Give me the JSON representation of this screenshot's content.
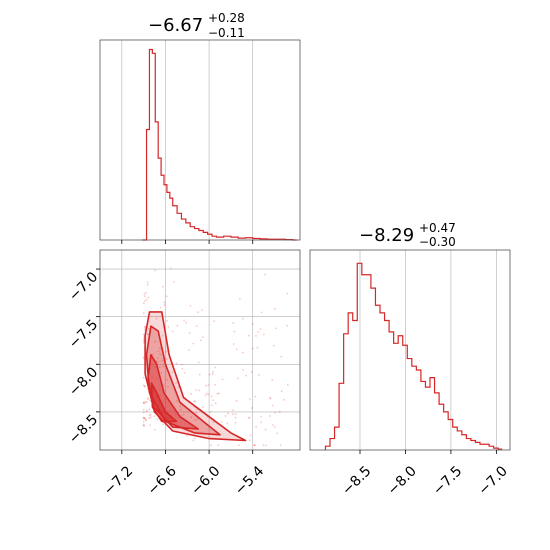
{
  "colors": {
    "line": "#d62728",
    "fill": "#f4a6a6",
    "grid": "#b0b0b0",
    "frame": "#555555"
  },
  "chart_data": [
    {
      "type": "histogram",
      "panel": "top-left",
      "title": {
        "main": "−6.67",
        "plus": "+0.28",
        "minus": "−0.11"
      },
      "xlim": [
        -7.5,
        -4.75
      ],
      "ylim": [
        0,
        1.05
      ],
      "xticks": [
        -7.2,
        -6.6,
        -6.0,
        -5.4
      ],
      "grid": true,
      "bins": [
        [
          -6.92,
          0
        ],
        [
          -6.86,
          0.58
        ],
        [
          -6.82,
          1.0
        ],
        [
          -6.78,
          0.98
        ],
        [
          -6.74,
          0.62
        ],
        [
          -6.7,
          0.43
        ],
        [
          -6.66,
          0.34
        ],
        [
          -6.62,
          0.29
        ],
        [
          -6.58,
          0.25
        ],
        [
          -6.54,
          0.22
        ],
        [
          -6.5,
          0.18
        ],
        [
          -6.44,
          0.14
        ],
        [
          -6.38,
          0.11
        ],
        [
          -6.32,
          0.09
        ],
        [
          -6.26,
          0.07
        ],
        [
          -6.2,
          0.06
        ],
        [
          -6.14,
          0.05
        ],
        [
          -6.08,
          0.04
        ],
        [
          -6.02,
          0.03
        ],
        [
          -5.96,
          0.02
        ],
        [
          -5.9,
          0.015
        ],
        [
          -5.8,
          0.02
        ],
        [
          -5.7,
          0.015
        ],
        [
          -5.6,
          0.01
        ],
        [
          -5.5,
          0.012
        ],
        [
          -5.4,
          0.008
        ],
        [
          -5.3,
          0.006
        ],
        [
          -5.2,
          0.004
        ],
        [
          -5.1,
          0.004
        ],
        [
          -4.95,
          0.002
        ],
        [
          -4.85,
          0
        ]
      ]
    },
    {
      "type": "scatter-contour",
      "panel": "bottom-left",
      "xlim": [
        -7.5,
        -4.75
      ],
      "ylim": [
        -8.9,
        -6.8
      ],
      "xticks": [
        -7.2,
        -6.6,
        -6.0,
        -5.4
      ],
      "yticks": [
        -7.0,
        -7.5,
        -8.0,
        -8.5
      ],
      "xticklabels": [
        "−7.2",
        "−6.6",
        "−6.0",
        "−5.4"
      ],
      "yticklabels": [
        "−7.0",
        "−7.5",
        "−8.0",
        "−8.5"
      ],
      "grid": true,
      "contours": [
        {
          "level": "outer",
          "points": [
            [
              -6.82,
              -7.45
            ],
            [
              -6.65,
              -7.45
            ],
            [
              -6.55,
              -7.9
            ],
            [
              -6.35,
              -8.35
            ],
            [
              -6.0,
              -8.55
            ],
            [
              -5.7,
              -8.72
            ],
            [
              -5.5,
              -8.8
            ],
            [
              -6.0,
              -8.78
            ],
            [
              -6.5,
              -8.7
            ],
            [
              -6.75,
              -8.5
            ],
            [
              -6.88,
              -8.1
            ],
            [
              -6.88,
              -7.7
            ]
          ]
        },
        {
          "level": "middle",
          "points": [
            [
              -6.8,
              -7.6
            ],
            [
              -6.7,
              -7.65
            ],
            [
              -6.6,
              -8.0
            ],
            [
              -6.4,
              -8.4
            ],
            [
              -6.05,
              -8.62
            ],
            [
              -5.85,
              -8.74
            ],
            [
              -6.2,
              -8.72
            ],
            [
              -6.6,
              -8.6
            ],
            [
              -6.82,
              -8.3
            ],
            [
              -6.86,
              -7.9
            ]
          ]
        },
        {
          "level": "inner",
          "points": [
            [
              -6.8,
              -7.9
            ],
            [
              -6.72,
              -8.0
            ],
            [
              -6.62,
              -8.3
            ],
            [
              -6.4,
              -8.55
            ],
            [
              -6.15,
              -8.68
            ],
            [
              -6.5,
              -8.66
            ],
            [
              -6.76,
              -8.45
            ],
            [
              -6.84,
              -8.15
            ]
          ]
        },
        {
          "level": "core",
          "points": [
            [
              -6.79,
              -8.2
            ],
            [
              -6.72,
              -8.3
            ],
            [
              -6.6,
              -8.5
            ],
            [
              -6.45,
              -8.6
            ],
            [
              -6.65,
              -8.6
            ],
            [
              -6.78,
              -8.45
            ]
          ]
        }
      ],
      "scatter_bounds": {
        "x": [
          -7.0,
          -4.9
        ],
        "y": [
          -8.85,
          -6.9
        ]
      }
    },
    {
      "type": "histogram",
      "panel": "bottom-right",
      "title": {
        "main": "−8.29",
        "plus": "+0.47",
        "minus": "−0.30"
      },
      "xlim": [
        -9.05,
        -6.85
      ],
      "ylim": [
        0,
        1.05
      ],
      "xticks": [
        -8.5,
        -8.0,
        -7.5,
        -7.0
      ],
      "xticklabels": [
        "−8.5",
        "−8.0",
        "−7.5",
        "−7.0"
      ],
      "grid": true,
      "bins": [
        [
          -8.88,
          0.02
        ],
        [
          -8.83,
          0.06
        ],
        [
          -8.78,
          0.12
        ],
        [
          -8.73,
          0.35
        ],
        [
          -8.68,
          0.61
        ],
        [
          -8.63,
          0.72
        ],
        [
          -8.58,
          0.68
        ],
        [
          -8.53,
          0.98
        ],
        [
          -8.48,
          0.92
        ],
        [
          -8.43,
          0.92
        ],
        [
          -8.38,
          0.85
        ],
        [
          -8.33,
          0.76
        ],
        [
          -8.28,
          0.72
        ],
        [
          -8.23,
          0.68
        ],
        [
          -8.18,
          0.62
        ],
        [
          -8.13,
          0.56
        ],
        [
          -8.08,
          0.6
        ],
        [
          -8.03,
          0.55
        ],
        [
          -7.98,
          0.48
        ],
        [
          -7.93,
          0.44
        ],
        [
          -7.88,
          0.42
        ],
        [
          -7.83,
          0.36
        ],
        [
          -7.78,
          0.33
        ],
        [
          -7.73,
          0.38
        ],
        [
          -7.68,
          0.3
        ],
        [
          -7.63,
          0.24
        ],
        [
          -7.58,
          0.2
        ],
        [
          -7.53,
          0.16
        ],
        [
          -7.48,
          0.12
        ],
        [
          -7.43,
          0.1
        ],
        [
          -7.38,
          0.08
        ],
        [
          -7.33,
          0.06
        ],
        [
          -7.28,
          0.05
        ],
        [
          -7.23,
          0.04
        ],
        [
          -7.18,
          0.03
        ],
        [
          -7.13,
          0.03
        ],
        [
          -7.08,
          0.02
        ],
        [
          -7.03,
          0.01
        ],
        [
          -6.98,
          0.005
        ]
      ]
    }
  ]
}
